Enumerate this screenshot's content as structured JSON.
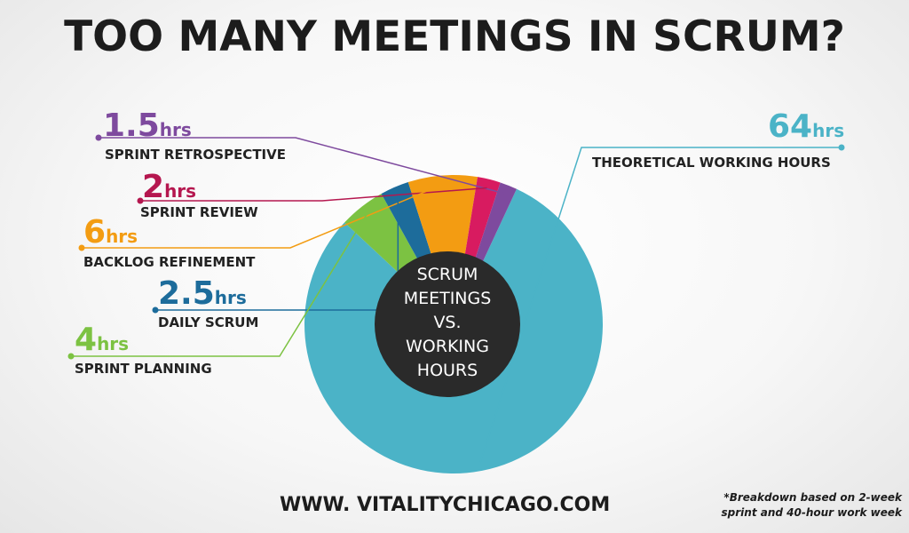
{
  "title": "TOO MANY MEETINGS IN SCRUM?",
  "center_label": [
    "SCRUM",
    "MEETINGS",
    "VS.",
    "WORKING",
    "HOURS"
  ],
  "website": "WWW. VITALITYCHICAGO.COM",
  "footnote": [
    "*Breakdown based on 2-week",
    "sprint and 40-hour work week"
  ],
  "chart_data": {
    "type": "pie",
    "unit": "hrs",
    "slices": [
      {
        "label": "THEORETICAL WORKING HOURS",
        "value_text": "64",
        "value": 64,
        "color": "#4bb3c7"
      },
      {
        "label": "SPRINT PLANNING",
        "value_text": "4",
        "value": 4,
        "color": "#7cc242"
      },
      {
        "label": "DAILY SCRUM",
        "value_text": "2.5",
        "value": 2.5,
        "color": "#1d6c9b"
      },
      {
        "label": "BACKLOG REFINEMENT",
        "value_text": "6",
        "value": 6,
        "color": "#f39c12"
      },
      {
        "label": "SPRINT REVIEW",
        "value_text": "2",
        "value": 2,
        "color": "#d81b60"
      },
      {
        "label": "SPRINT RETROSPECTIVE",
        "value_text": "1.5",
        "value": 1.5,
        "color": "#7e4a9e"
      }
    ]
  }
}
